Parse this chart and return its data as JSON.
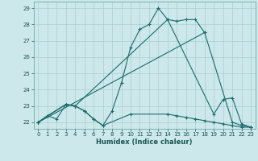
{
  "title": "",
  "xlabel": "Humidex (Indice chaleur)",
  "bg_color": "#cce8ea",
  "grid_color": "#aacdd2",
  "line_color": "#1a6b6b",
  "xlim": [
    -0.5,
    23.5
  ],
  "ylim": [
    21.6,
    29.4
  ],
  "xticks": [
    0,
    1,
    2,
    3,
    4,
    5,
    6,
    7,
    8,
    9,
    10,
    11,
    12,
    13,
    14,
    15,
    16,
    17,
    18,
    19,
    20,
    21,
    22,
    23
  ],
  "yticks": [
    22,
    23,
    24,
    25,
    26,
    27,
    28,
    29
  ],
  "lines": [
    {
      "x": [
        0,
        1,
        2,
        3,
        4,
        5,
        6,
        7,
        8,
        9,
        10,
        11,
        12,
        13,
        14,
        15,
        16,
        17,
        18,
        21,
        22,
        23
      ],
      "y": [
        22,
        22.4,
        22.2,
        23.1,
        23.0,
        22.7,
        22.2,
        21.8,
        22.7,
        24.4,
        26.6,
        27.7,
        28.0,
        29.0,
        28.3,
        28.2,
        28.3,
        28.3,
        27.5,
        22.0,
        21.8,
        21.7
      ]
    },
    {
      "x": [
        0,
        18
      ],
      "y": [
        22,
        27.5
      ]
    },
    {
      "x": [
        0,
        3,
        4,
        14,
        19,
        20,
        21,
        22,
        23
      ],
      "y": [
        22,
        23.1,
        23.0,
        28.3,
        22.5,
        23.4,
        23.5,
        21.9,
        21.7
      ]
    },
    {
      "x": [
        0,
        1,
        3,
        4,
        5,
        6,
        7,
        10,
        14,
        15,
        16,
        17,
        18,
        19,
        20,
        21,
        22,
        23
      ],
      "y": [
        22,
        22.4,
        23.1,
        23.0,
        22.7,
        22.2,
        21.8,
        22.5,
        22.5,
        22.4,
        22.3,
        22.2,
        22.1,
        22.0,
        21.9,
        21.8,
        21.7,
        21.7
      ]
    }
  ]
}
